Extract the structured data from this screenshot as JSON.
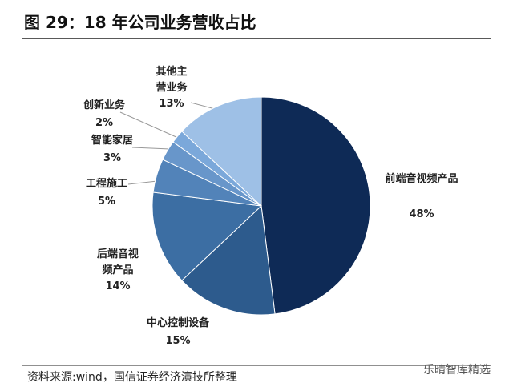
{
  "chart_data": {
    "type": "pie",
    "title": "图 29：18 年公司业务营收占比",
    "categories": [
      "前端音视频产品",
      "中心控制设备",
      "后端音视频产品",
      "工程施工",
      "智能家居",
      "创新业务",
      "其他主营业务"
    ],
    "values": [
      48,
      15,
      14,
      5,
      3,
      2,
      13
    ],
    "value_labels": [
      "48%",
      "15%",
      "14%",
      "5%",
      "3%",
      "2%",
      "13%"
    ],
    "colors": [
      "#0e2a56",
      "#2d5b8d",
      "#3c6ea3",
      "#5283b9",
      "#6896ca",
      "#7ba8da",
      "#9ec0e6"
    ],
    "source": "资料来源:wind，国信证券经济演技所整理",
    "watermark": "乐晴智库精选"
  }
}
